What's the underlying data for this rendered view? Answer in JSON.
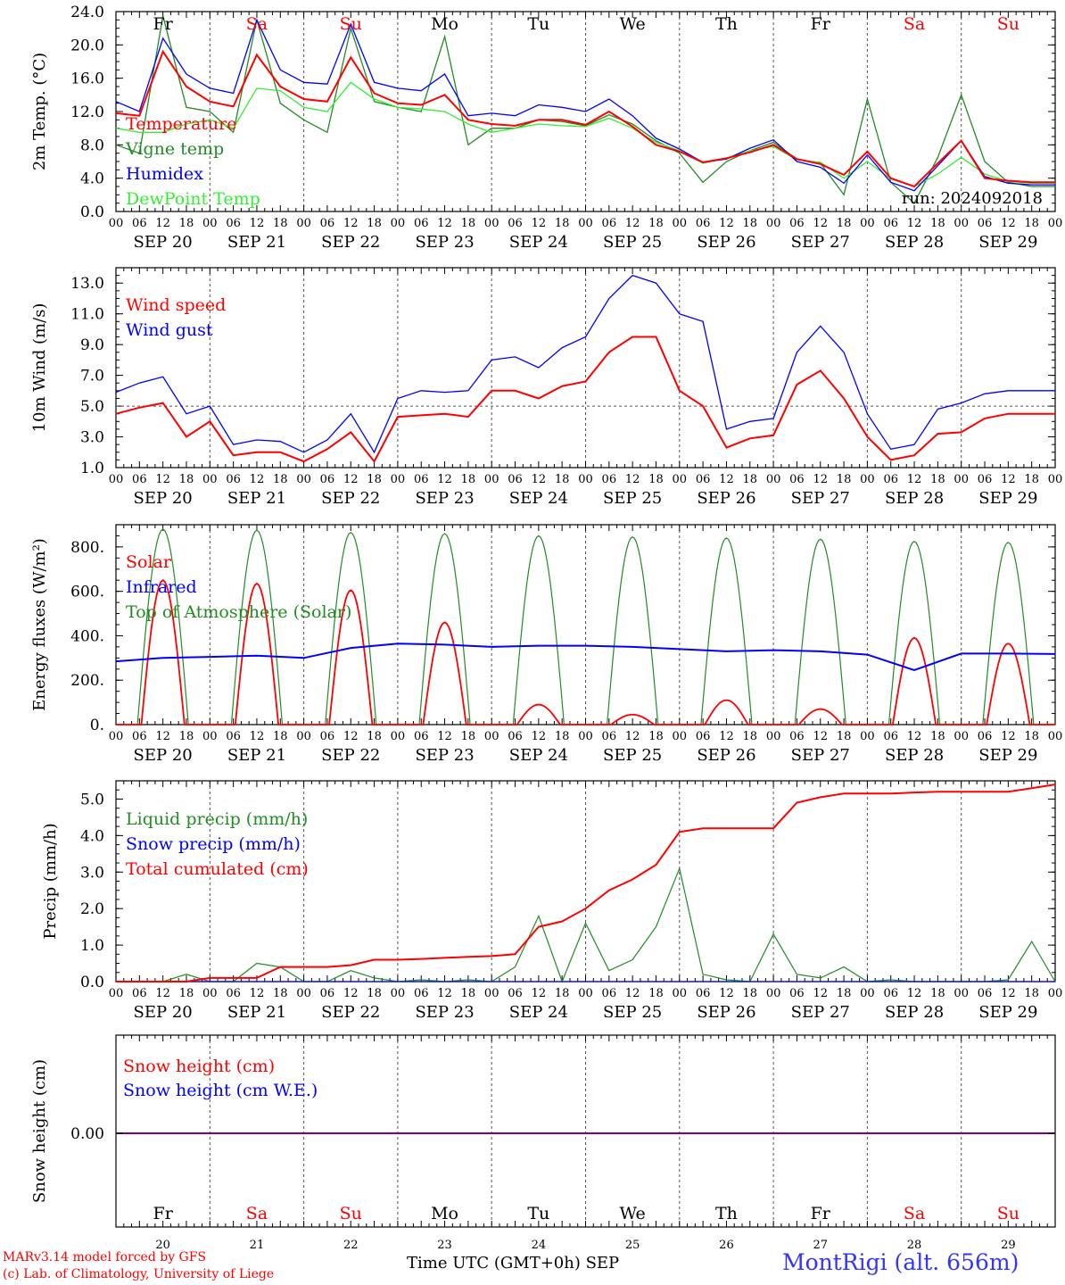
{
  "chart_data": [
    {
      "type": "line",
      "ylabel": "2m Temp. (°C)",
      "ylim": [
        0,
        24
      ],
      "yticks": [
        "0.0",
        "4.0",
        "8.0",
        "12.0",
        "16.0",
        "20.0",
        "24.0"
      ],
      "grid": "vertical dashed lines at day boundaries",
      "legend_placement": "left, inside plot",
      "run_label": "run: 2024092018",
      "x_hours": [
        0,
        6,
        12,
        18,
        24,
        30,
        36,
        42,
        48,
        54,
        60,
        66,
        72,
        78,
        84,
        90,
        96,
        102,
        108,
        114,
        120,
        126,
        132,
        138,
        144,
        150,
        156,
        162,
        168,
        174,
        180,
        186,
        192,
        198,
        204,
        210,
        216,
        222,
        228,
        234,
        240
      ],
      "series": [
        {
          "name": "Temperature",
          "color": "#ff0000",
          "values": [
            11.8,
            11.5,
            19.2,
            15.0,
            13.2,
            12.6,
            18.8,
            15.0,
            13.5,
            13.2,
            18.5,
            14.2,
            13.0,
            12.8,
            14.0,
            11.0,
            10.5,
            10.3,
            11.0,
            11.0,
            10.4,
            12.0,
            10.2,
            8.0,
            7.2,
            5.9,
            6.4,
            7.1,
            8.0,
            6.3,
            5.7,
            4.4,
            7.2,
            4.0,
            3.0,
            5.8,
            8.5,
            4.0,
            3.7,
            3.5,
            3.5
          ]
        },
        {
          "name": "Vigne temp",
          "color": "#228b22",
          "values": [
            8.0,
            7.0,
            23.5,
            12.5,
            12.0,
            9.5,
            23.0,
            13.0,
            11.0,
            9.5,
            22.0,
            13.2,
            12.5,
            12.0,
            21.0,
            8.0,
            10.0,
            10.0,
            11.0,
            10.8,
            10.3,
            11.6,
            10.5,
            8.5,
            7.0,
            3.5,
            6.0,
            7.3,
            8.3,
            6.3,
            5.8,
            2.0,
            13.5,
            3.5,
            1.0,
            6.5,
            14.0,
            6.0,
            3.5,
            3.0,
            3.0
          ]
        },
        {
          "name": "Humidex",
          "color": "#0000ff",
          "values": [
            13.2,
            12.0,
            20.8,
            16.5,
            14.8,
            14.2,
            23.0,
            17.0,
            15.5,
            15.3,
            22.5,
            15.5,
            14.8,
            14.5,
            16.5,
            11.5,
            11.8,
            11.5,
            12.8,
            12.5,
            12.0,
            13.5,
            11.5,
            8.8,
            7.5,
            5.9,
            6.3,
            7.6,
            8.6,
            6.0,
            5.3,
            3.4,
            6.8,
            3.5,
            2.5,
            5.5,
            8.5,
            4.2,
            3.4,
            3.2,
            3.2
          ]
        },
        {
          "name": "DewPoint Temp",
          "color": "#33ee33",
          "values": [
            10.0,
            9.5,
            9.5,
            10.5,
            11.0,
            10.0,
            14.8,
            14.5,
            12.5,
            12.0,
            15.5,
            13.5,
            12.5,
            12.3,
            12.0,
            10.5,
            9.5,
            10.0,
            10.5,
            10.3,
            10.2,
            11.2,
            10.0,
            8.3,
            7.3,
            5.8,
            6.4,
            7.3,
            7.8,
            6.2,
            5.9,
            4.0,
            6.0,
            3.9,
            3.0,
            4.5,
            6.5,
            4.5,
            3.6,
            3.4,
            3.4
          ]
        }
      ]
    },
    {
      "type": "line",
      "ylabel": "10m Wind (m/s)",
      "ylim": [
        1.0,
        14.0
      ],
      "yticks": [
        "1.0",
        "3.0",
        "5.0",
        "7.0",
        "9.0",
        "11.0",
        "13.0"
      ],
      "reference_line": 5.0,
      "legend_placement": "left, inside plot",
      "x_hours": [
        0,
        6,
        12,
        18,
        24,
        30,
        36,
        42,
        48,
        54,
        60,
        66,
        72,
        78,
        84,
        90,
        96,
        102,
        108,
        114,
        120,
        126,
        132,
        138,
        144,
        150,
        156,
        162,
        168,
        174,
        180,
        186,
        192,
        198,
        204,
        210,
        216,
        222,
        228,
        234,
        240
      ],
      "series": [
        {
          "name": "Wind speed",
          "color": "#ff0000",
          "values": [
            4.5,
            4.9,
            5.2,
            3.0,
            4.0,
            1.8,
            2.0,
            2.0,
            1.4,
            2.2,
            3.3,
            1.4,
            4.3,
            4.4,
            4.5,
            4.3,
            6.0,
            6.0,
            5.5,
            6.3,
            6.6,
            8.5,
            9.5,
            9.5,
            6.0,
            5.0,
            2.3,
            2.9,
            3.1,
            6.4,
            7.3,
            5.5,
            3.0,
            1.5,
            1.8,
            3.2,
            3.3,
            4.2,
            4.5,
            4.5,
            4.5
          ]
        },
        {
          "name": "Wind gust",
          "color": "#0000ff",
          "values": [
            5.9,
            6.5,
            6.9,
            4.5,
            5.0,
            2.5,
            2.8,
            2.7,
            2.0,
            2.8,
            4.5,
            2.0,
            5.5,
            6.0,
            5.9,
            6.0,
            8.0,
            8.2,
            7.5,
            8.8,
            9.5,
            12.0,
            13.5,
            13.0,
            11.0,
            10.5,
            3.5,
            4.0,
            4.2,
            8.5,
            10.2,
            8.5,
            4.5,
            2.2,
            2.5,
            4.8,
            5.2,
            5.8,
            6.0,
            6.0,
            6.0
          ]
        }
      ]
    },
    {
      "type": "line",
      "ylabel": "Energy fluxes (W/m²)",
      "ylim": [
        0,
        900
      ],
      "yticks": [
        "0.",
        "200.",
        "400.",
        "600.",
        "800."
      ],
      "legend_placement": "left, inside plot",
      "solar_peaks_by_day": [
        650,
        635,
        605,
        460,
        90,
        45,
        110,
        70,
        390,
        365
      ],
      "toa_peaks_by_day": [
        880,
        875,
        865,
        860,
        850,
        845,
        840,
        835,
        825,
        820
      ],
      "infrared_hours": [
        0,
        12,
        24,
        36,
        48,
        60,
        72,
        84,
        96,
        108,
        120,
        132,
        144,
        156,
        168,
        180,
        192,
        204,
        216,
        228,
        240
      ],
      "infrared_values": [
        285,
        300,
        305,
        310,
        300,
        345,
        365,
        360,
        350,
        355,
        355,
        350,
        340,
        330,
        335,
        330,
        315,
        245,
        320,
        320,
        318
      ],
      "series": [
        {
          "name": "Solar",
          "color": "#ff0000"
        },
        {
          "name": "Infrared",
          "color": "#0000ff"
        },
        {
          "name": "Top of Atmosphere (Solar)",
          "color": "#228b22"
        }
      ]
    },
    {
      "type": "line",
      "ylabel": "Precip (mm/h)",
      "ylim": [
        0,
        5.5
      ],
      "yticks": [
        "0.0",
        "1.0",
        "2.0",
        "3.0",
        "4.0",
        "5.0"
      ],
      "legend_placement": "left, inside plot",
      "x_hours": [
        0,
        6,
        12,
        18,
        24,
        30,
        36,
        42,
        48,
        54,
        60,
        66,
        72,
        78,
        84,
        90,
        96,
        102,
        108,
        114,
        120,
        126,
        132,
        138,
        144,
        150,
        156,
        162,
        168,
        174,
        180,
        186,
        192,
        198,
        204,
        210,
        216,
        222,
        228,
        234,
        240
      ],
      "series": [
        {
          "name": "Liquid precip (mm/h)",
          "color": "#228b22",
          "values": [
            0,
            0,
            0,
            0.2,
            0,
            0,
            0.5,
            0.4,
            0,
            0,
            0.3,
            0.1,
            0,
            0.05,
            0,
            0.05,
            0,
            0.4,
            1.8,
            0,
            1.6,
            0.3,
            0.6,
            1.5,
            3.1,
            0.2,
            0.05,
            0,
            1.3,
            0.2,
            0.1,
            0.4,
            0,
            0.05,
            0,
            0,
            0,
            0,
            0.05,
            1.1,
            0
          ]
        },
        {
          "name": "Snow precip (mm/h)",
          "color": "#0000ff",
          "values": [
            0,
            0,
            0,
            0,
            0,
            0,
            0,
            0,
            0,
            0,
            0,
            0,
            0,
            0,
            0,
            0,
            0,
            0,
            0,
            0,
            0,
            0,
            0,
            0,
            0,
            0,
            0,
            0,
            0,
            0,
            0,
            0,
            0,
            0,
            0,
            0,
            0,
            0,
            0,
            0,
            0
          ]
        },
        {
          "name": "Total cumulated (cm)",
          "color": "#ff0000",
          "values": [
            0,
            0,
            0,
            0,
            0.1,
            0.1,
            0.1,
            0.4,
            0.4,
            0.4,
            0.45,
            0.6,
            0.6,
            0.62,
            0.65,
            0.68,
            0.7,
            0.75,
            1.5,
            1.65,
            2.0,
            2.5,
            2.8,
            3.2,
            4.1,
            4.2,
            4.2,
            4.2,
            4.2,
            4.9,
            5.05,
            5.15,
            5.15,
            5.15,
            5.18,
            5.2,
            5.2,
            5.2,
            5.2,
            5.3,
            5.4
          ]
        }
      ]
    },
    {
      "type": "line",
      "ylabel": "Snow height (cm)",
      "ytick": "0.00",
      "legend_placement": "left, inside plot",
      "series": [
        {
          "name": "Snow height (cm)",
          "color": "#ff0000",
          "values": [
            0,
            0
          ]
        },
        {
          "name": "Snow height (cm W.E.)",
          "color": "#0000ff",
          "values": [
            0,
            0
          ]
        }
      ],
      "combined_line_color": "#800080"
    }
  ],
  "x_axis": {
    "hour_ticks": [
      "00",
      "06",
      "12",
      "18"
    ],
    "final_tick": "00",
    "dates": [
      "SEP 20",
      "SEP 21",
      "SEP 22",
      "SEP 23",
      "SEP 24",
      "SEP 25",
      "SEP 26",
      "SEP 27",
      "SEP 28",
      "SEP 29"
    ],
    "weekdays": [
      "Fr",
      "Sa",
      "Su",
      "Mo",
      "Tu",
      "We",
      "Th",
      "Fr",
      "Sa",
      "Su"
    ],
    "weekday_colors": [
      "#000000",
      "#ff0000",
      "#ff0000",
      "#000000",
      "#000000",
      "#000000",
      "#000000",
      "#000000",
      "#ff0000",
      "#ff0000"
    ],
    "day_numbers": [
      "20",
      "21",
      "22",
      "23",
      "24",
      "25",
      "26",
      "27",
      "28",
      "29"
    ]
  },
  "footer": {
    "credit_line1": "MARv3.14 model forced by GFS",
    "credit_line2": "(c) Lab. of Climatology, University of Liege",
    "x_title": "Time UTC (GMT+0h) SEP",
    "station": "MontRigi (alt. 656m)"
  }
}
